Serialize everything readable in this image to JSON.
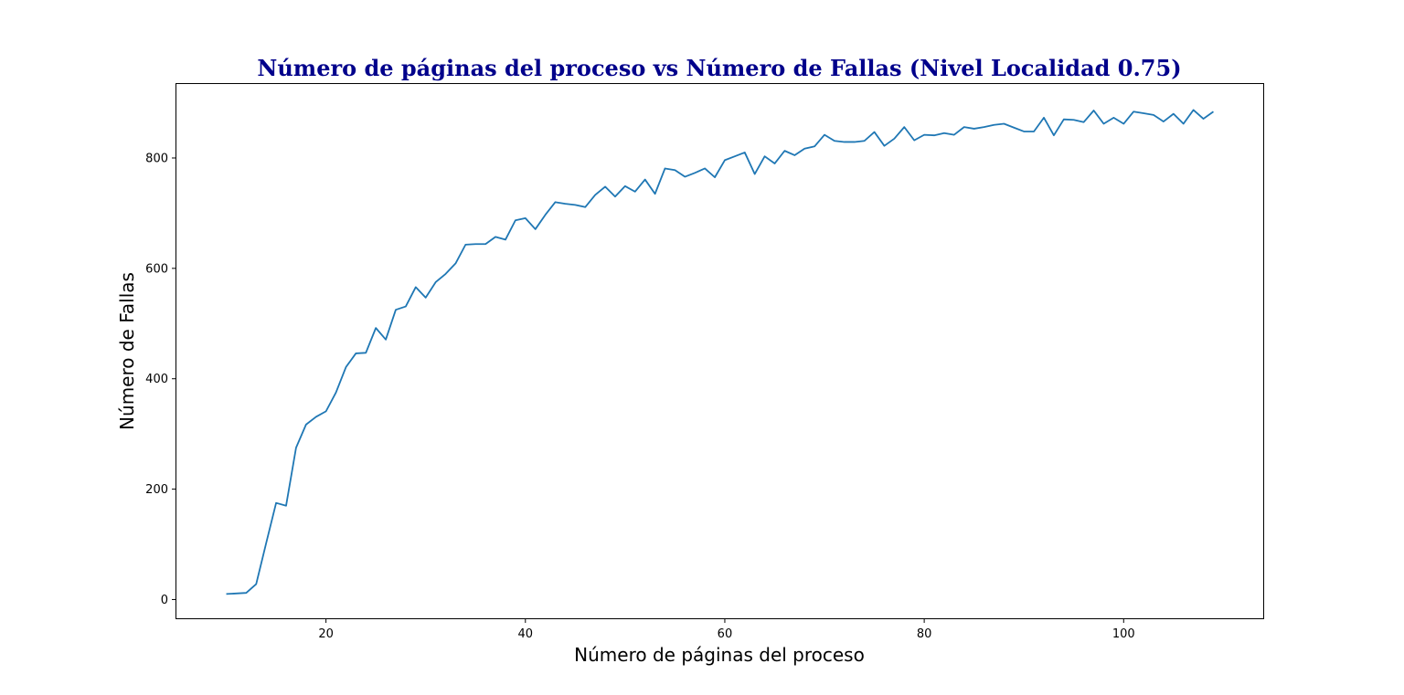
{
  "chart_data": {
    "type": "line",
    "title": "Número de páginas del proceso vs Número de Fallas (Nivel Localidad 0.75)",
    "xlabel": "Número de páginas del proceso",
    "ylabel": "Número de Fallas",
    "xlim": [
      5,
      114
    ],
    "ylim": [
      -34,
      934
    ],
    "x_ticks": [
      20,
      40,
      60,
      80,
      100
    ],
    "y_ticks": [
      0,
      200,
      400,
      600,
      800
    ],
    "grid": false,
    "legend": "none",
    "colors": {
      "title": "#00008b",
      "line": "#1f77b4",
      "axes": "#000000",
      "background": "#ffffff"
    },
    "series": [
      {
        "x": [
          10,
          11,
          12,
          13,
          14,
          15,
          16,
          17,
          18,
          19,
          20,
          21,
          22,
          23,
          24,
          25,
          26,
          27,
          28,
          29,
          30,
          31,
          32,
          33,
          34,
          35,
          36,
          37,
          38,
          39,
          40,
          41,
          42,
          43,
          44,
          45,
          46,
          47,
          48,
          49,
          50,
          51,
          52,
          53,
          54,
          55,
          56,
          57,
          58,
          59,
          60,
          61,
          62,
          63,
          64,
          65,
          66,
          67,
          68,
          69,
          70,
          71,
          72,
          73,
          74,
          75,
          76,
          77,
          78,
          79,
          80,
          81,
          82,
          83,
          84,
          85,
          86,
          87,
          88,
          89,
          90,
          91,
          92,
          93,
          94,
          95,
          96,
          97,
          98,
          99,
          100,
          101,
          102,
          103,
          104,
          105,
          106,
          107,
          108,
          109
        ],
        "values": [
          10,
          11,
          12,
          28,
          102,
          175,
          170,
          275,
          317,
          331,
          341,
          375,
          421,
          446,
          447,
          492,
          471,
          525,
          531,
          566,
          547,
          575,
          590,
          609,
          643,
          644,
          644,
          657,
          652,
          687,
          691,
          671,
          697,
          720,
          717,
          715,
          711,
          733,
          748,
          730,
          749,
          739,
          761,
          735,
          781,
          778,
          766,
          773,
          781,
          765,
          796,
          803,
          810,
          771,
          803,
          790,
          813,
          805,
          817,
          821,
          842,
          831,
          829,
          829,
          831,
          847,
          822,
          835,
          856,
          832,
          842,
          841,
          845,
          842,
          856,
          853,
          856,
          860,
          862,
          855,
          848,
          848,
          873,
          841,
          870,
          869,
          865,
          886,
          862,
          873,
          862,
          884,
          881,
          878,
          866,
          880,
          862,
          887,
          871,
          884
        ]
      }
    ]
  }
}
